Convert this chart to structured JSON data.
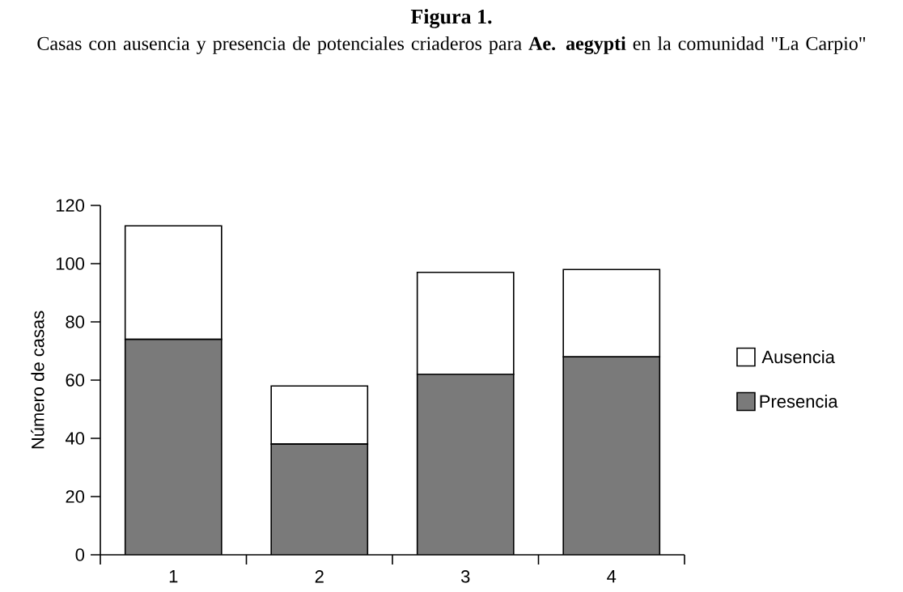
{
  "chart_data": {
    "type": "bar",
    "title": "Figura 1.",
    "subtitle": "Casas con ausencia y presencia de potenciales criaderos para **Ae. aegypti** en la comunidad \"La Carpio\"",
    "ylabel": "Número de casas",
    "categories": [
      "1",
      "2",
      "3",
      "4"
    ],
    "stacked": true,
    "series": [
      {
        "name": "Presencia",
        "color": "#7a7a7a",
        "values": [
          74,
          38,
          62,
          68
        ]
      },
      {
        "name": "Ausencia",
        "color": "#ffffff",
        "values": [
          39,
          20,
          35,
          30
        ]
      }
    ],
    "ylim": [
      0,
      120
    ],
    "yticks": [
      0,
      20,
      40,
      60,
      80,
      100,
      120
    ],
    "grid": false,
    "legend": "right"
  }
}
